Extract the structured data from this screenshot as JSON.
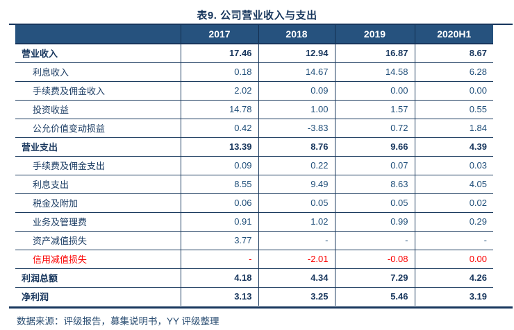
{
  "title": "表9. 公司营业收入与支出",
  "table": {
    "columns": [
      "",
      "2017",
      "2018",
      "2019",
      "2020H1"
    ],
    "rows": [
      {
        "label": "营业收入",
        "values": [
          "17.46",
          "12.94",
          "16.87",
          "8.67"
        ],
        "style": "section"
      },
      {
        "label": "利息收入",
        "values": [
          "0.18",
          "14.67",
          "14.58",
          "6.28"
        ],
        "style": "sub"
      },
      {
        "label": "手续费及佣金收入",
        "values": [
          "2.02",
          "0.09",
          "0.00",
          "0.00"
        ],
        "style": "sub"
      },
      {
        "label": "投资收益",
        "values": [
          "14.78",
          "1.00",
          "1.57",
          "0.55"
        ],
        "style": "sub"
      },
      {
        "label": "公允价值变动损益",
        "values": [
          "0.42",
          "-3.83",
          "0.72",
          "1.84"
        ],
        "style": "sub"
      },
      {
        "label": "营业支出",
        "values": [
          "13.39",
          "8.76",
          "9.66",
          "4.39"
        ],
        "style": "section"
      },
      {
        "label": "手续费及佣金支出",
        "values": [
          "0.09",
          "0.22",
          "0.07",
          "0.03"
        ],
        "style": "sub"
      },
      {
        "label": "利息支出",
        "values": [
          "8.55",
          "9.49",
          "8.63",
          "4.05"
        ],
        "style": "sub"
      },
      {
        "label": "税金及附加",
        "values": [
          "0.06",
          "0.05",
          "0.05",
          "0.02"
        ],
        "style": "sub"
      },
      {
        "label": "业务及管理费",
        "values": [
          "0.91",
          "1.02",
          "0.99",
          "0.29"
        ],
        "style": "sub"
      },
      {
        "label": "资产减值损失",
        "values": [
          "3.77",
          "-",
          "-",
          "-"
        ],
        "style": "sub"
      },
      {
        "label": "信用减值损失",
        "values": [
          "-",
          "-2.01",
          "-0.08",
          "0.00"
        ],
        "style": "sub-red"
      },
      {
        "label": "利润总额",
        "values": [
          "4.18",
          "4.34",
          "7.29",
          "4.26"
        ],
        "style": "section"
      },
      {
        "label": "净利润",
        "values": [
          "3.13",
          "3.25",
          "5.46",
          "3.19"
        ],
        "style": "section"
      }
    ]
  },
  "footer": {
    "source_text": "数据来源：评级报告，募集说明书，YY 评级整理"
  },
  "colors": {
    "header_bg": "#26527E",
    "title_navy": "#17365D",
    "value_navy": "#1F4E79",
    "rule_navy": "#17365D",
    "highlight_red": "#FB0000",
    "header_text": "#FFFFFF"
  }
}
